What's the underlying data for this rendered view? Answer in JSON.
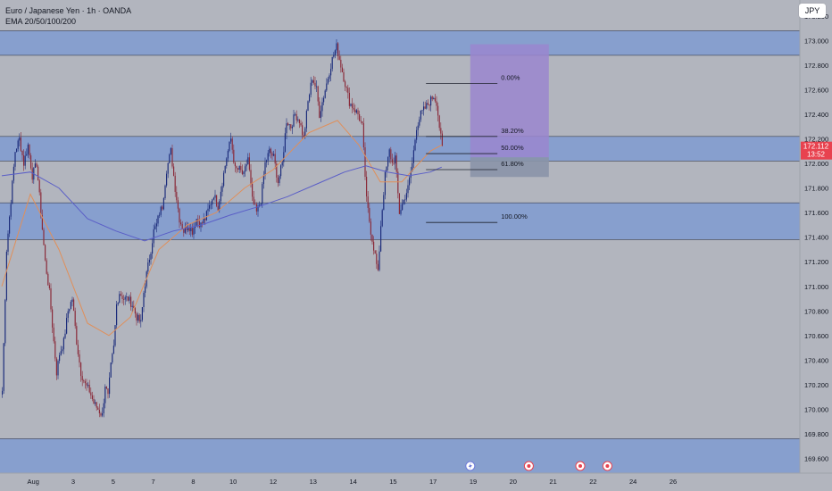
{
  "header": {
    "title": "Euro / Japanese Yen · 1h · OANDA",
    "indicator": "EMA 20/50/100/200",
    "currency": "JPY"
  },
  "price_label": {
    "price": "172.112",
    "countdown": "13:52"
  },
  "colors": {
    "background": "#b2b5be",
    "bull": "#1d2d7c",
    "bear": "#8a2b3a",
    "zone": "#7f9bd1",
    "ema_fast": "#e08f5a",
    "ema_slow": "#5b5fc7",
    "target": "#9a86cf",
    "stop": "#8a93a8",
    "price_tag": "#e8424f"
  },
  "chart_data": {
    "type": "candlestick",
    "symbol": "EURJPY",
    "timeframe": "1h",
    "y_axis": {
      "ticks": [
        "173.200",
        "173.000",
        "172.800",
        "172.600",
        "172.400",
        "172.200",
        "172.000",
        "171.800",
        "171.600",
        "171.400",
        "171.200",
        "171.000",
        "170.800",
        "170.600",
        "170.400",
        "170.200",
        "170.000",
        "169.800",
        "169.600"
      ],
      "range": [
        169.48,
        173.33
      ]
    },
    "x_axis": {
      "ticks": [
        "Aug",
        "3",
        "5",
        "7",
        "8",
        "10",
        "12",
        "13",
        "14",
        "15",
        "17",
        "19",
        "20",
        "21",
        "22",
        "24",
        "26"
      ],
      "tick_index": [
        22,
        50,
        78,
        106,
        134,
        162,
        190,
        218,
        246,
        274,
        302,
        330,
        358,
        386,
        414,
        442,
        470
      ]
    },
    "ohlc_anchors": [
      [
        0,
        170.15
      ],
      [
        3,
        171.3
      ],
      [
        6,
        171.7
      ],
      [
        9,
        172.1
      ],
      [
        12,
        172.2
      ],
      [
        15,
        172.0
      ],
      [
        18,
        172.15
      ],
      [
        21,
        171.9
      ],
      [
        24,
        172.0
      ],
      [
        27,
        171.6
      ],
      [
        30,
        171.2
      ],
      [
        33,
        170.95
      ],
      [
        36,
        170.55
      ],
      [
        38,
        170.3
      ],
      [
        40,
        170.45
      ],
      [
        43,
        170.55
      ],
      [
        46,
        170.8
      ],
      [
        49,
        170.9
      ],
      [
        52,
        170.55
      ],
      [
        55,
        170.3
      ],
      [
        58,
        170.2
      ],
      [
        61,
        170.15
      ],
      [
        64,
        170.05
      ],
      [
        67,
        170.0
      ],
      [
        70,
        169.95
      ],
      [
        72,
        170.2
      ],
      [
        74,
        170.1
      ],
      [
        76,
        170.35
      ],
      [
        78,
        170.5
      ],
      [
        80,
        170.85
      ],
      [
        82,
        170.95
      ],
      [
        85,
        170.9
      ],
      [
        88,
        170.9
      ],
      [
        91,
        170.85
      ],
      [
        94,
        170.75
      ],
      [
        97,
        170.7
      ],
      [
        99,
        170.95
      ],
      [
        101,
        171.1
      ],
      [
        104,
        171.3
      ],
      [
        106,
        171.45
      ],
      [
        108,
        171.5
      ],
      [
        110,
        171.6
      ],
      [
        112,
        171.65
      ],
      [
        115,
        171.95
      ],
      [
        118,
        172.1
      ],
      [
        121,
        171.8
      ],
      [
        124,
        171.55
      ],
      [
        127,
        171.45
      ],
      [
        130,
        171.5
      ],
      [
        133,
        171.45
      ],
      [
        136,
        171.55
      ],
      [
        139,
        171.5
      ],
      [
        142,
        171.55
      ],
      [
        145,
        171.65
      ],
      [
        148,
        171.75
      ],
      [
        151,
        171.65
      ],
      [
        154,
        171.85
      ],
      [
        157,
        172.05
      ],
      [
        160,
        172.2
      ],
      [
        163,
        171.95
      ],
      [
        166,
        171.95
      ],
      [
        169,
        171.9
      ],
      [
        172,
        172.05
      ],
      [
        175,
        171.7
      ],
      [
        178,
        171.6
      ],
      [
        181,
        171.7
      ],
      [
        184,
        172.0
      ],
      [
        187,
        172.1
      ],
      [
        190,
        172.05
      ],
      [
        193,
        171.85
      ],
      [
        196,
        172.0
      ],
      [
        199,
        172.35
      ],
      [
        202,
        172.3
      ],
      [
        205,
        172.4
      ],
      [
        208,
        172.35
      ],
      [
        211,
        172.2
      ],
      [
        214,
        172.5
      ],
      [
        217,
        172.7
      ],
      [
        220,
        172.6
      ],
      [
        222,
        172.4
      ],
      [
        225,
        172.55
      ],
      [
        228,
        172.7
      ],
      [
        231,
        172.85
      ],
      [
        234,
        172.95
      ],
      [
        237,
        172.8
      ],
      [
        240,
        172.65
      ],
      [
        243,
        172.5
      ],
      [
        246,
        172.45
      ],
      [
        249,
        172.4
      ],
      [
        252,
        172.3
      ],
      [
        255,
        171.7
      ],
      [
        258,
        171.45
      ],
      [
        261,
        171.25
      ],
      [
        263,
        171.1
      ],
      [
        265,
        171.5
      ],
      [
        268,
        171.9
      ],
      [
        271,
        172.1
      ],
      [
        273,
        172.0
      ],
      [
        275,
        172.05
      ],
      [
        278,
        171.6
      ],
      [
        281,
        171.7
      ],
      [
        284,
        171.8
      ],
      [
        287,
        172.0
      ],
      [
        290,
        172.3
      ],
      [
        293,
        172.4
      ],
      [
        296,
        172.45
      ],
      [
        299,
        172.5
      ],
      [
        302,
        172.55
      ],
      [
        304,
        172.5
      ],
      [
        306,
        172.3
      ],
      [
        308,
        172.12
      ]
    ],
    "series": [
      {
        "name": "EMA 20/50/100/200",
        "style": "fast",
        "values": [
          [
            0,
            171.0
          ],
          [
            20,
            171.75
          ],
          [
            40,
            171.3
          ],
          [
            60,
            170.7
          ],
          [
            75,
            170.6
          ],
          [
            90,
            170.75
          ],
          [
            110,
            171.3
          ],
          [
            130,
            171.5
          ],
          [
            150,
            171.6
          ],
          [
            170,
            171.8
          ],
          [
            190,
            171.95
          ],
          [
            215,
            172.25
          ],
          [
            235,
            172.35
          ],
          [
            250,
            172.15
          ],
          [
            265,
            171.85
          ],
          [
            280,
            171.85
          ],
          [
            300,
            172.1
          ],
          [
            308,
            172.15
          ]
        ]
      },
      {
        "name": "EMA 20/50/100/200",
        "style": "slow",
        "values": [
          [
            0,
            171.9
          ],
          [
            20,
            171.93
          ],
          [
            40,
            171.8
          ],
          [
            60,
            171.55
          ],
          [
            80,
            171.45
          ],
          [
            100,
            171.37
          ],
          [
            120,
            171.45
          ],
          [
            140,
            171.5
          ],
          [
            160,
            171.58
          ],
          [
            180,
            171.65
          ],
          [
            200,
            171.73
          ],
          [
            220,
            171.83
          ],
          [
            240,
            171.93
          ],
          [
            255,
            171.98
          ],
          [
            270,
            171.93
          ],
          [
            285,
            171.9
          ],
          [
            300,
            171.93
          ],
          [
            308,
            171.97
          ]
        ]
      }
    ],
    "zones": [
      {
        "from": 172.88,
        "to": 173.08
      },
      {
        "from": 172.02,
        "to": 172.22
      },
      {
        "from": 171.38,
        "to": 171.68
      },
      {
        "from": 169.48,
        "to": 169.76
      }
    ],
    "fibonacci": {
      "start_index": 297,
      "end_index": 347,
      "levels": [
        {
          "label": "0.00%",
          "price": 172.65
        },
        {
          "label": "38.20%",
          "price": 172.22
        },
        {
          "label": "50.00%",
          "price": 172.08
        },
        {
          "label": "61.80%",
          "price": 171.95
        },
        {
          "label": "100.00%",
          "price": 171.52
        }
      ]
    },
    "position": {
      "start_index": 328,
      "end_index": 383,
      "target": 172.97,
      "entry": 172.05,
      "stop": 171.89
    },
    "events": [
      {
        "index": 328,
        "icon": "lightning-icon"
      },
      {
        "index": 369,
        "icon": "flag-event-icon"
      },
      {
        "index": 405,
        "icon": "flag-event-icon"
      },
      {
        "index": 424,
        "icon": "flag-event-icon"
      }
    ]
  }
}
